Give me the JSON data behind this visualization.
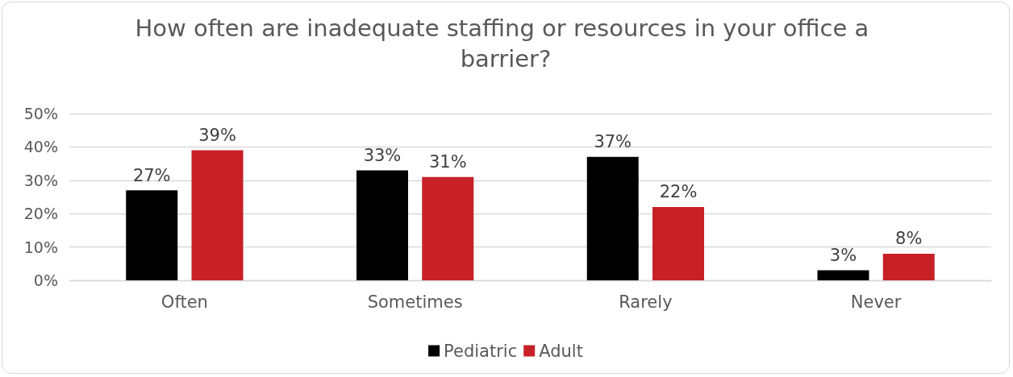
{
  "chart_data": {
    "type": "bar",
    "title": "How often are inadequate staffing or resources in your office a barrier?",
    "categories": [
      "Often",
      "Sometimes",
      "Rarely",
      "Never"
    ],
    "series": [
      {
        "name": "Pediatric",
        "color": "#000000",
        "values": [
          27,
          33,
          37,
          3
        ],
        "value_labels": [
          "27%",
          "33%",
          "37%",
          "3%"
        ]
      },
      {
        "name": "Adult",
        "color": "#c72127",
        "values": [
          39,
          31,
          22,
          8
        ],
        "value_labels": [
          "39%",
          "31%",
          "22%",
          "8%"
        ]
      }
    ],
    "ylim": [
      0,
      50
    ],
    "yticks": [
      {
        "value": 0,
        "label": "0%"
      },
      {
        "value": 10,
        "label": "10%"
      },
      {
        "value": 20,
        "label": "20%"
      },
      {
        "value": 30,
        "label": "30%"
      },
      {
        "value": 40,
        "label": "40%"
      },
      {
        "value": 50,
        "label": "50%"
      }
    ],
    "grid": "y",
    "legend": "bottom"
  }
}
